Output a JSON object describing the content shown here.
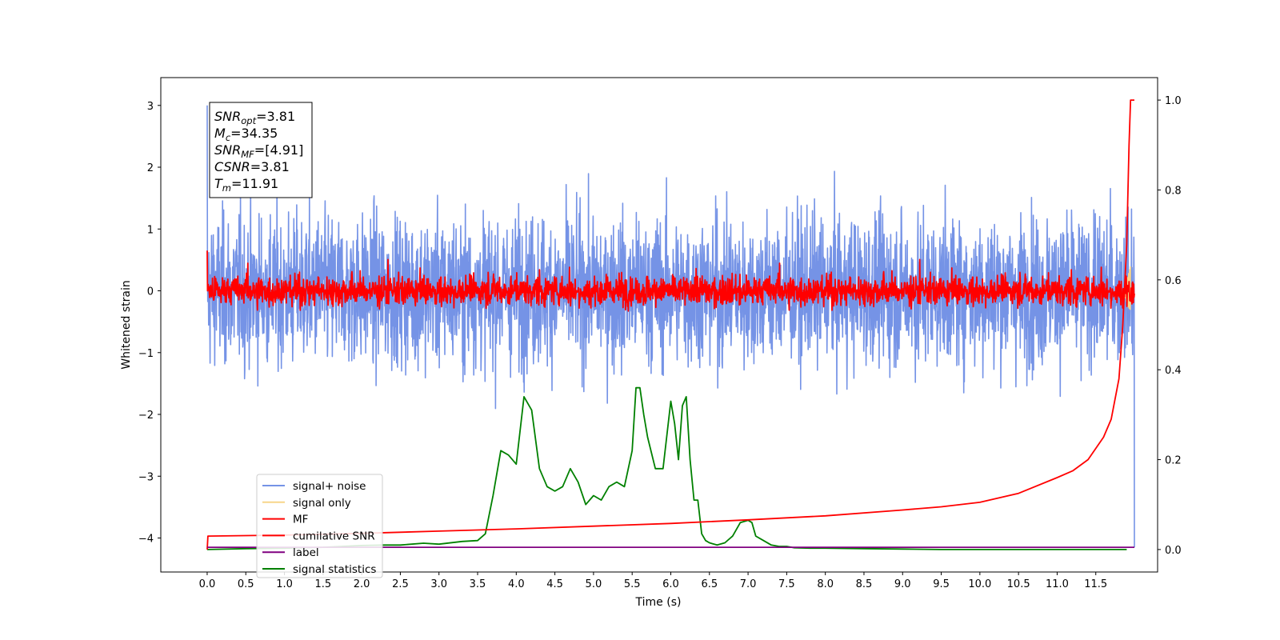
{
  "chart_data": {
    "type": "line",
    "xlabel": "Time (s)",
    "ylabel": "Whitened strain",
    "xlim": [
      -0.6,
      12.3
    ],
    "ylim": [
      -4.55,
      3.45
    ],
    "y2lim": [
      -0.05,
      1.05
    ],
    "x_ticks": [
      "0.0",
      "0.5",
      "1.0",
      "1.5",
      "2.0",
      "2.5",
      "3.0",
      "3.5",
      "4.0",
      "4.5",
      "5.0",
      "5.5",
      "6.0",
      "6.5",
      "7.0",
      "7.5",
      "8.0",
      "8.5",
      "9.0",
      "9.5",
      "10.0",
      "10.5",
      "11.0",
      "11.5"
    ],
    "y_ticks": [
      "3",
      "2",
      "1",
      "0",
      "−1",
      "−2",
      "−3",
      "−4"
    ],
    "y2_ticks": [
      "1.0",
      "0.8",
      "0.6",
      "0.4",
      "0.2",
      "0.0"
    ],
    "grid": false,
    "legend_position": "lower-left",
    "legend": [
      {
        "label": "signal+ noise",
        "color": "#7593e6"
      },
      {
        "label": "signal only",
        "color": "#f7d58a"
      },
      {
        "label": "MF",
        "color": "#ff0000"
      },
      {
        "label": "cumilative SNR",
        "color": "#ff0000"
      },
      {
        "label": "label",
        "color": "#800080"
      },
      {
        "label": "signal statistics",
        "color": "#008000"
      }
    ],
    "annotation": {
      "lines": [
        {
          "main": "SNR",
          "sub": "opt",
          "value": "=3.81"
        },
        {
          "main": "M",
          "sub": "c",
          "value": "=34.35"
        },
        {
          "main": "SNR",
          "sub": "MF",
          "value": "=[4.91]"
        },
        {
          "main": "CSNR",
          "sub": "",
          "value": "=3.81"
        },
        {
          "main": "T",
          "sub": "m",
          "value": "=11.91"
        }
      ]
    },
    "series": [
      {
        "name": "signal statistics",
        "axis": "right",
        "color": "#008000",
        "x": [
          0.0,
          0.5,
          1.0,
          1.5,
          2.0,
          2.3,
          2.5,
          2.8,
          3.0,
          3.3,
          3.5,
          3.6,
          3.7,
          3.8,
          3.9,
          4.0,
          4.1,
          4.2,
          4.3,
          4.4,
          4.5,
          4.6,
          4.7,
          4.8,
          4.9,
          5.0,
          5.1,
          5.2,
          5.3,
          5.4,
          5.5,
          5.55,
          5.6,
          5.65,
          5.7,
          5.8,
          5.9,
          6.0,
          6.05,
          6.1,
          6.15,
          6.2,
          6.25,
          6.3,
          6.35,
          6.4,
          6.45,
          6.5,
          6.6,
          6.7,
          6.8,
          6.9,
          7.0,
          7.05,
          7.1,
          7.2,
          7.3,
          7.4,
          7.5,
          7.6,
          7.8,
          8.0,
          8.5,
          9.0,
          9.5,
          10.0,
          11.0,
          11.9
        ],
        "y": [
          0.0,
          0.002,
          0.003,
          0.005,
          0.009,
          0.01,
          0.01,
          0.014,
          0.012,
          0.018,
          0.02,
          0.035,
          0.12,
          0.22,
          0.21,
          0.19,
          0.34,
          0.31,
          0.18,
          0.14,
          0.13,
          0.14,
          0.18,
          0.15,
          0.1,
          0.12,
          0.11,
          0.14,
          0.15,
          0.14,
          0.22,
          0.36,
          0.36,
          0.3,
          0.25,
          0.18,
          0.18,
          0.33,
          0.28,
          0.2,
          0.32,
          0.34,
          0.2,
          0.11,
          0.11,
          0.035,
          0.02,
          0.015,
          0.01,
          0.015,
          0.03,
          0.06,
          0.065,
          0.06,
          0.03,
          0.02,
          0.01,
          0.007,
          0.007,
          0.004,
          0.003,
          0.003,
          0.002,
          0.001,
          0.0,
          0.0,
          0.0,
          0.0
        ]
      },
      {
        "name": "cumilative SNR",
        "axis": "right",
        "color": "#ff0000",
        "x": [
          0.0,
          0.01,
          1.0,
          2.0,
          3.0,
          4.0,
          5.0,
          6.0,
          7.0,
          8.0,
          9.0,
          9.5,
          10.0,
          10.5,
          11.0,
          11.2,
          11.4,
          11.6,
          11.7,
          11.8,
          11.85,
          11.9,
          11.93,
          11.95,
          11.97,
          12.0
        ],
        "y": [
          0.0,
          0.03,
          0.032,
          0.036,
          0.041,
          0.046,
          0.052,
          0.058,
          0.066,
          0.075,
          0.088,
          0.095,
          0.105,
          0.125,
          0.16,
          0.175,
          0.2,
          0.25,
          0.29,
          0.38,
          0.5,
          0.68,
          0.9,
          1.0,
          1.0,
          1.0
        ]
      },
      {
        "name": "label",
        "axis": "left",
        "color": "#800080",
        "x": [
          0.0,
          12.0
        ],
        "y": [
          -4.15,
          -4.15
        ]
      }
    ]
  }
}
